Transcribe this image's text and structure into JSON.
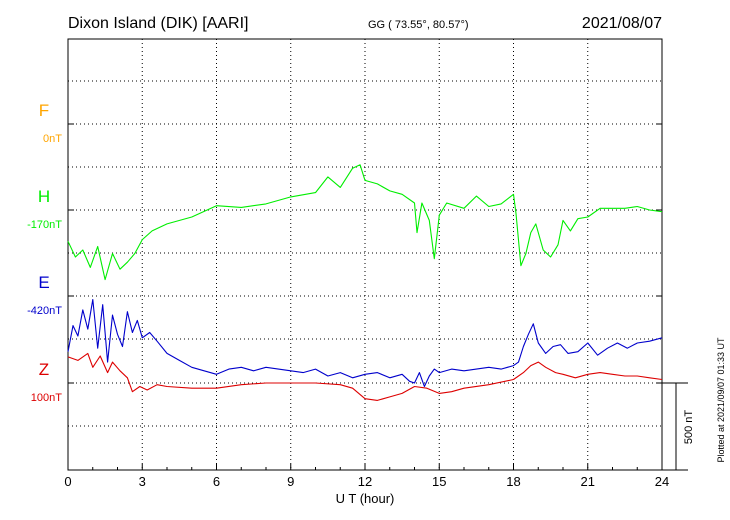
{
  "header": {
    "station": "Dixon Island (DIK)  [AARI]",
    "coords": "GG ( 73.55°,  80.57°)",
    "date": "2021/08/07"
  },
  "footer": {
    "plotted": "Plotted at 2021/09/07 01:33 UT"
  },
  "colors": {
    "F": "#ffa500",
    "H": "#00ee00",
    "E": "#0000cc",
    "Z": "#dd0000"
  },
  "chart_data": {
    "type": "line",
    "xlabel": "U T (hour)",
    "xlim": [
      0,
      24
    ],
    "x_ticks": [
      "0",
      "3",
      "6",
      "9",
      "12",
      "15",
      "18",
      "21",
      "24"
    ],
    "scale_label": "500 nT",
    "series": [
      {
        "name": "F",
        "baseline_label": "0nT",
        "color": "#ffa500",
        "points": []
      },
      {
        "name": "H",
        "baseline_label": "-170nT",
        "color": "#00ee00",
        "points": [
          [
            0,
            -180
          ],
          [
            0.3,
            -270
          ],
          [
            0.6,
            -230
          ],
          [
            0.9,
            -330
          ],
          [
            1.2,
            -210
          ],
          [
            1.5,
            -400
          ],
          [
            1.8,
            -250
          ],
          [
            2.1,
            -340
          ],
          [
            2.4,
            -300
          ],
          [
            2.7,
            -250
          ],
          [
            3.0,
            -170
          ],
          [
            3.4,
            -120
          ],
          [
            4.0,
            -80
          ],
          [
            5.0,
            -40
          ],
          [
            6.0,
            25
          ],
          [
            7.0,
            15
          ],
          [
            8.0,
            35
          ],
          [
            9.0,
            75
          ],
          [
            10.0,
            100
          ],
          [
            10.5,
            190
          ],
          [
            11.0,
            130
          ],
          [
            11.5,
            240
          ],
          [
            11.8,
            260
          ],
          [
            12.0,
            170
          ],
          [
            12.5,
            150
          ],
          [
            13.0,
            110
          ],
          [
            13.5,
            90
          ],
          [
            14.0,
            40
          ],
          [
            14.1,
            -130
          ],
          [
            14.3,
            40
          ],
          [
            14.6,
            -60
          ],
          [
            14.8,
            -280
          ],
          [
            15.0,
            -30
          ],
          [
            15.3,
            40
          ],
          [
            16.0,
            10
          ],
          [
            16.5,
            80
          ],
          [
            17.0,
            20
          ],
          [
            17.5,
            35
          ],
          [
            18.0,
            90
          ],
          [
            18.1,
            -20
          ],
          [
            18.3,
            -320
          ],
          [
            18.5,
            -250
          ],
          [
            18.7,
            -130
          ],
          [
            18.9,
            -80
          ],
          [
            19.2,
            -230
          ],
          [
            19.5,
            -270
          ],
          [
            19.8,
            -200
          ],
          [
            20.0,
            -60
          ],
          [
            20.3,
            -120
          ],
          [
            20.6,
            -50
          ],
          [
            21.0,
            -40
          ],
          [
            21.5,
            10
          ],
          [
            22.0,
            10
          ],
          [
            22.5,
            10
          ],
          [
            23.0,
            20
          ],
          [
            23.5,
            0
          ],
          [
            24.0,
            -10
          ]
        ]
      },
      {
        "name": "E",
        "baseline_label": "-420nT",
        "color": "#0000cc",
        "points": [
          [
            0,
            -320
          ],
          [
            0.2,
            -170
          ],
          [
            0.4,
            -230
          ],
          [
            0.6,
            -80
          ],
          [
            0.8,
            -190
          ],
          [
            1.0,
            -20
          ],
          [
            1.2,
            -300
          ],
          [
            1.4,
            -50
          ],
          [
            1.6,
            -380
          ],
          [
            1.8,
            -110
          ],
          [
            2.0,
            -220
          ],
          [
            2.2,
            -290
          ],
          [
            2.4,
            -90
          ],
          [
            2.6,
            -210
          ],
          [
            2.8,
            -140
          ],
          [
            3.0,
            -240
          ],
          [
            3.3,
            -210
          ],
          [
            3.6,
            -260
          ],
          [
            4.0,
            -330
          ],
          [
            4.5,
            -370
          ],
          [
            5.0,
            -410
          ],
          [
            5.5,
            -430
          ],
          [
            6.0,
            -450
          ],
          [
            6.5,
            -420
          ],
          [
            7.0,
            -410
          ],
          [
            7.5,
            -430
          ],
          [
            8.0,
            -410
          ],
          [
            8.5,
            -420
          ],
          [
            9.0,
            -430
          ],
          [
            9.5,
            -440
          ],
          [
            10.0,
            -420
          ],
          [
            10.5,
            -460
          ],
          [
            11.0,
            -440
          ],
          [
            11.5,
            -470
          ],
          [
            12.0,
            -450
          ],
          [
            12.5,
            -440
          ],
          [
            13.0,
            -470
          ],
          [
            13.5,
            -450
          ],
          [
            13.8,
            -490
          ],
          [
            14.0,
            -500
          ],
          [
            14.2,
            -440
          ],
          [
            14.4,
            -520
          ],
          [
            14.6,
            -460
          ],
          [
            14.8,
            -420
          ],
          [
            15.0,
            -440
          ],
          [
            15.5,
            -420
          ],
          [
            16.0,
            -430
          ],
          [
            16.5,
            -420
          ],
          [
            17.0,
            -410
          ],
          [
            17.5,
            -420
          ],
          [
            18.0,
            -400
          ],
          [
            18.2,
            -380
          ],
          [
            18.4,
            -290
          ],
          [
            18.6,
            -220
          ],
          [
            18.8,
            -160
          ],
          [
            19.0,
            -270
          ],
          [
            19.3,
            -330
          ],
          [
            19.6,
            -290
          ],
          [
            19.9,
            -280
          ],
          [
            20.2,
            -330
          ],
          [
            20.6,
            -320
          ],
          [
            21.0,
            -270
          ],
          [
            21.4,
            -340
          ],
          [
            21.8,
            -300
          ],
          [
            22.2,
            -270
          ],
          [
            22.6,
            -300
          ],
          [
            23.0,
            -270
          ],
          [
            23.5,
            -260
          ],
          [
            24.0,
            -240
          ]
        ]
      },
      {
        "name": "Z",
        "baseline_label": "100nT",
        "color": "#dd0000",
        "points": [
          [
            0,
            150
          ],
          [
            0.4,
            130
          ],
          [
            0.8,
            170
          ],
          [
            1.0,
            90
          ],
          [
            1.3,
            155
          ],
          [
            1.6,
            60
          ],
          [
            1.8,
            120
          ],
          [
            2.1,
            70
          ],
          [
            2.4,
            30
          ],
          [
            2.6,
            -50
          ],
          [
            2.9,
            -20
          ],
          [
            3.2,
            -40
          ],
          [
            3.6,
            -10
          ],
          [
            4.0,
            -20
          ],
          [
            5.0,
            -30
          ],
          [
            6.0,
            -30
          ],
          [
            7.0,
            -10
          ],
          [
            8.0,
            0
          ],
          [
            9.0,
            0
          ],
          [
            10.0,
            0
          ],
          [
            11.0,
            -10
          ],
          [
            11.5,
            -30
          ],
          [
            12.0,
            -90
          ],
          [
            12.5,
            -100
          ],
          [
            13.0,
            -80
          ],
          [
            13.5,
            -60
          ],
          [
            14.0,
            -20
          ],
          [
            14.5,
            -30
          ],
          [
            15.0,
            -60
          ],
          [
            15.5,
            -50
          ],
          [
            16.0,
            -30
          ],
          [
            17.0,
            -10
          ],
          [
            18.0,
            20
          ],
          [
            18.4,
            60
          ],
          [
            18.7,
            100
          ],
          [
            19.0,
            120
          ],
          [
            19.3,
            90
          ],
          [
            19.7,
            60
          ],
          [
            20.0,
            50
          ],
          [
            20.5,
            30
          ],
          [
            21.0,
            50
          ],
          [
            21.5,
            60
          ],
          [
            22.0,
            50
          ],
          [
            22.5,
            40
          ],
          [
            23.0,
            40
          ],
          [
            23.5,
            30
          ],
          [
            24.0,
            20
          ]
        ]
      }
    ]
  }
}
